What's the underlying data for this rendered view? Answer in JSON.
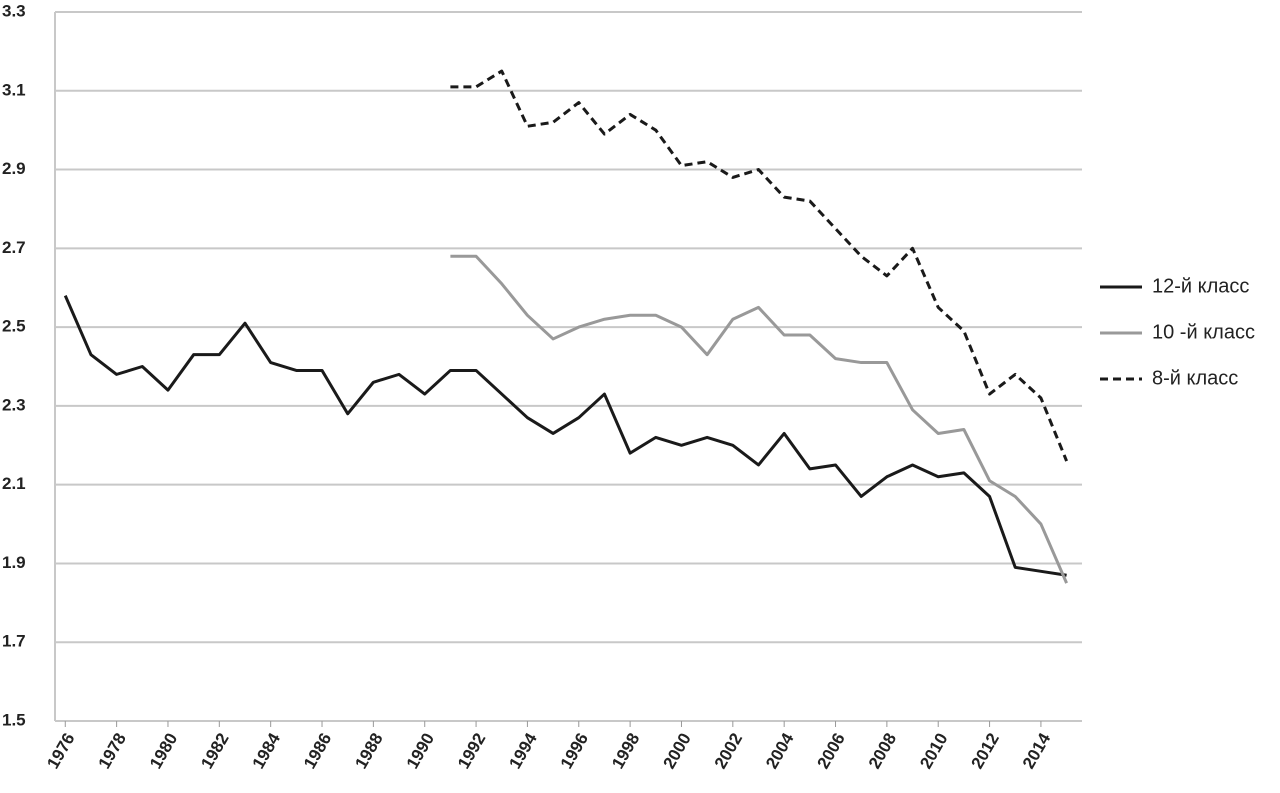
{
  "chart_data": {
    "type": "line",
    "x": [
      1976,
      1977,
      1978,
      1979,
      1980,
      1981,
      1982,
      1983,
      1984,
      1985,
      1986,
      1987,
      1988,
      1989,
      1990,
      1991,
      1992,
      1993,
      1994,
      1995,
      1996,
      1997,
      1998,
      1999,
      2000,
      2001,
      2002,
      2003,
      2004,
      2005,
      2006,
      2007,
      2008,
      2009,
      2010,
      2011,
      2012,
      2013,
      2014,
      2015
    ],
    "series": [
      {
        "name": "12-й класс",
        "color": "#1a1a1a",
        "style": "solid",
        "values": [
          2.58,
          2.43,
          2.38,
          2.4,
          2.34,
          2.43,
          2.43,
          2.51,
          2.41,
          2.39,
          2.39,
          2.28,
          2.36,
          2.38,
          2.33,
          2.39,
          2.39,
          2.33,
          2.27,
          2.23,
          2.27,
          2.33,
          2.18,
          2.22,
          2.2,
          2.22,
          2.2,
          2.15,
          2.23,
          2.14,
          2.15,
          2.07,
          2.12,
          2.15,
          2.12,
          2.13,
          2.07,
          1.89,
          1.88,
          1.87
        ]
      },
      {
        "name": "10 -й класс",
        "color": "#999999",
        "style": "solid",
        "values": [
          null,
          null,
          null,
          null,
          null,
          null,
          null,
          null,
          null,
          null,
          null,
          null,
          null,
          null,
          null,
          2.68,
          2.68,
          2.61,
          2.53,
          2.47,
          2.5,
          2.52,
          2.53,
          2.53,
          2.5,
          2.43,
          2.52,
          2.55,
          2.48,
          2.48,
          2.42,
          2.41,
          2.41,
          2.29,
          2.23,
          2.24,
          2.11,
          2.07,
          2.0,
          1.85
        ]
      },
      {
        "name": "8-й класс",
        "color": "#1a1a1a",
        "style": "dashed",
        "values": [
          null,
          null,
          null,
          null,
          null,
          null,
          null,
          null,
          null,
          null,
          null,
          null,
          null,
          null,
          null,
          3.11,
          3.11,
          3.15,
          3.01,
          3.02,
          3.07,
          2.99,
          3.04,
          3.0,
          2.91,
          2.92,
          2.88,
          2.9,
          2.83,
          2.82,
          2.75,
          2.68,
          2.63,
          2.7,
          2.55,
          2.49,
          2.33,
          2.38,
          2.32,
          2.16
        ]
      }
    ],
    "xlim": [
      1975.6,
      2015.6
    ],
    "xticks": [
      1976,
      1978,
      1980,
      1982,
      1984,
      1986,
      1988,
      1990,
      1992,
      1994,
      1996,
      1998,
      2000,
      2002,
      2004,
      2006,
      2008,
      2010,
      2012,
      2014
    ],
    "ylim": [
      1.5,
      3.3
    ],
    "yticks": [
      1.5,
      1.7,
      1.9,
      2.1,
      2.3,
      2.5,
      2.7,
      2.9,
      3.1,
      3.3
    ],
    "grid": true,
    "legend": "right"
  }
}
